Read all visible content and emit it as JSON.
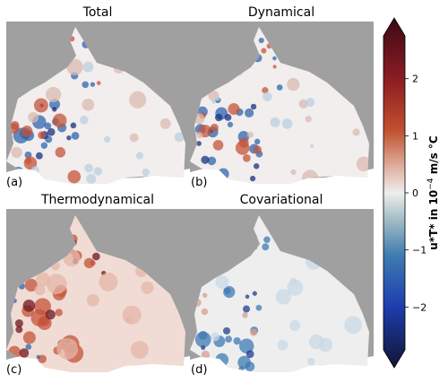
{
  "chart_data": [
    {
      "type": "heatmap",
      "title": "Total",
      "panel_label": "(a)",
      "pattern": "total"
    },
    {
      "type": "heatmap",
      "title": "Dynamical",
      "panel_label": "(b)",
      "pattern": "dyn"
    },
    {
      "type": "heatmap",
      "title": "Thermodynamical",
      "panel_label": "(c)",
      "pattern": "thermo"
    },
    {
      "type": "heatmap",
      "title": "Covariational",
      "panel_label": "(d)",
      "pattern": "cov"
    }
  ],
  "colorbar": {
    "label_main": "u*T* in 10",
    "label_exp": "−4",
    "label_unit": " m/s °C",
    "ticks": [
      {
        "value": 2,
        "label": "2"
      },
      {
        "value": 1,
        "label": "1"
      },
      {
        "value": 0,
        "label": "0"
      },
      {
        "value": -1,
        "label": "−1"
      },
      {
        "value": -2,
        "label": "−2"
      }
    ],
    "range": [
      -2.75,
      2.75
    ],
    "colors": {
      "max": "#3c0914",
      "pos": "#b2332a",
      "zero": "#eeeeee",
      "neg": "#2a5fb2",
      "min": "#121435",
      "masked": "#a0a0a0"
    }
  }
}
